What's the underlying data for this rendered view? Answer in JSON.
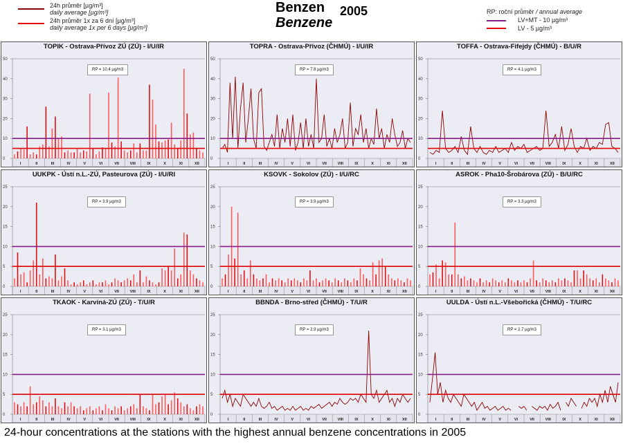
{
  "legend": {
    "daily_cz": "24h průměr [µg/m³]",
    "daily_en": "daily average [µg/m³]",
    "six_cz": "24h průměr 1x za 6 dní [µg/m³]",
    "six_en": "daily average 1x per 6 days [µg/m³]",
    "rp_label": "RP: roční průměr",
    "rp_en": "/ annual average",
    "lvmt": "LV+MT - 10 µg/m³",
    "lv": "LV - 5 µg/m³"
  },
  "header": {
    "title_cz": "Benzen",
    "title_en": "Benzene",
    "year": "2005"
  },
  "caption": "24-hour concentrations at the stations with the highest annual benzene concentrations in 2005",
  "colors": {
    "lvmt": "#8a1a8a",
    "lv": "#e00000",
    "bar": "#ff5a5a",
    "line": "#8b0000",
    "panel_bg": "#ececf4"
  },
  "months": [
    "I",
    "II",
    "III",
    "IV",
    "V",
    "VI",
    "VII",
    "VIII",
    "IX",
    "X",
    "XI",
    "XII"
  ],
  "chart_data": [
    {
      "type": "bar",
      "title": "TOPIK - Ostrava-Přívoz ZÚ (ZÚ) - I/U/IR",
      "rp": "RP = 10.4 µg/m3",
      "ylim": [
        0,
        50
      ],
      "yticks": [
        0,
        10,
        20,
        30,
        40,
        50
      ],
      "limits": [
        10,
        5
      ],
      "values": [
        2,
        3.5,
        5,
        4.5,
        16,
        2,
        3,
        2,
        6,
        7,
        26,
        6,
        15,
        21,
        10,
        11,
        3,
        4,
        3,
        3,
        5,
        3,
        4,
        3.5,
        32.5,
        5,
        2,
        3.5,
        5.5,
        5,
        33,
        8,
        6,
        40.5,
        8.5,
        4,
        3,
        4,
        7.5,
        3,
        7.5,
        4,
        4,
        37,
        29.5,
        17,
        8.5,
        8,
        9,
        9.5,
        18,
        7,
        5,
        9,
        45,
        22.5,
        12,
        13,
        5,
        4,
        3
      ]
    },
    {
      "type": "line",
      "title": "TOPRA - Ostrava-Přívoz (ČHMÚ) - I/U/IR",
      "rp": "RP = 7.8 µg/m3",
      "ylim": [
        0,
        50
      ],
      "yticks": [
        0,
        10,
        20,
        30,
        40,
        50
      ],
      "limits": [
        10,
        5
      ],
      "values": [
        5,
        7,
        3,
        38,
        10,
        41,
        5,
        25,
        38,
        8,
        20,
        35,
        10,
        5,
        33,
        35,
        6,
        4,
        8,
        12,
        6,
        22,
        5,
        15,
        8,
        20,
        6,
        22,
        4,
        8,
        18,
        5,
        20,
        6,
        12,
        5,
        40,
        8,
        10,
        22,
        6,
        10,
        5,
        15,
        8,
        12,
        20,
        5,
        8,
        28,
        6,
        15,
        12,
        22,
        8,
        15,
        5,
        10,
        7,
        25,
        10,
        15,
        5,
        12,
        8,
        20,
        12,
        6,
        8,
        14,
        5,
        10,
        8
      ]
    },
    {
      "type": "line",
      "title": "TOFFA - Ostrava-Fifejdy (ČHMÚ) - B/U/R",
      "rp": "RP = 4.1 µg/m3",
      "ylim": [
        0,
        50
      ],
      "yticks": [
        0,
        10,
        20,
        30,
        40,
        50
      ],
      "limits": [
        10,
        5
      ],
      "values": [
        3,
        2,
        4,
        3,
        24,
        5,
        3,
        4,
        6,
        3,
        11,
        4,
        2,
        16,
        5,
        3,
        6,
        3,
        2,
        4,
        3,
        6,
        3,
        4,
        5,
        3,
        8,
        4,
        6,
        5,
        7,
        3,
        4,
        5,
        6,
        4,
        5,
        24,
        6,
        8,
        12,
        5,
        16,
        4,
        7,
        15,
        6,
        3,
        6,
        5,
        10,
        4,
        6,
        5,
        8,
        7,
        17,
        18,
        6,
        5,
        3
      ]
    },
    {
      "type": "bar",
      "title": "UUKPK - Ústí n.L.-ZÚ, Pasteurova (ZÚ) - I/U/RI",
      "rp": "RP = 3.9 µg/m3",
      "ylim": [
        0,
        25
      ],
      "yticks": [
        0,
        5,
        10,
        15,
        20,
        25
      ],
      "limits": [
        10,
        5
      ],
      "values": [
        2,
        8.5,
        3,
        3.5,
        1,
        4,
        6.5,
        21,
        3,
        7,
        2,
        2.5,
        2,
        8,
        1.5,
        2.5,
        4.5,
        1.5,
        0.5,
        1,
        0.5,
        1,
        1.5,
        0.5,
        1,
        1.5,
        0.5,
        1,
        1,
        1.5,
        0.5,
        1,
        2,
        1.5,
        1,
        1.5,
        2,
        1.5,
        3,
        1,
        4,
        1,
        2.5,
        1.5,
        1,
        0.5,
        1,
        4.5,
        4,
        5,
        4,
        9.5,
        2,
        3,
        13.5,
        13,
        4,
        3,
        2,
        1.5,
        1
      ]
    },
    {
      "type": "bar",
      "title": "KSOVK - Sokolov (ZÚ) - I/U/RC",
      "rp": "RP = 3.9 µg/m3",
      "ylim": [
        0,
        25
      ],
      "yticks": [
        0,
        5,
        10,
        15,
        20,
        25
      ],
      "limits": [
        10,
        5
      ],
      "values": [
        2,
        3,
        8,
        20,
        7,
        18.5,
        3,
        4,
        2,
        6.5,
        3,
        2,
        1.5,
        2,
        3,
        1,
        2,
        1.5,
        2,
        1.5,
        1,
        2,
        1.5,
        2,
        1.5,
        1,
        2,
        1.5,
        4,
        1.5,
        2,
        1,
        1.5,
        2,
        1.5,
        1,
        2,
        1.5,
        1,
        2,
        1.5,
        1,
        2,
        1.5,
        4.5,
        3,
        2,
        1.5,
        6,
        3,
        6.5,
        7,
        5,
        3,
        2,
        1.5,
        2,
        1.5,
        1,
        2,
        1.5
      ]
    },
    {
      "type": "bar",
      "title": "ASROK - Pha10-Šrobárova (ZÚ) - B/U/RC",
      "rp": "RP = 3.3 µg/m3",
      "ylim": [
        0,
        25
      ],
      "yticks": [
        0,
        5,
        10,
        15,
        20,
        25
      ],
      "limits": [
        10,
        5
      ],
      "values": [
        3,
        3.5,
        5.5,
        2,
        6.5,
        6,
        3,
        3,
        16,
        3,
        2,
        2.5,
        1.5,
        2,
        1.5,
        1,
        2,
        1,
        1.5,
        1,
        2,
        1.5,
        1,
        1.5,
        1,
        2,
        1.5,
        1,
        1.5,
        1,
        1.5,
        1,
        2,
        6.5,
        1.5,
        1,
        2,
        1.5,
        1,
        1.5,
        1,
        2,
        1.5,
        2,
        1.5,
        1,
        4,
        4,
        2,
        4,
        3,
        2,
        1.5,
        2,
        1,
        3,
        2,
        1.5,
        1,
        2,
        1.5
      ]
    },
    {
      "type": "bar",
      "title": "TKAOK - Karviná-ZÚ (ZÚ) - T/U/R",
      "rp": "RP = 3.1 µg/m3",
      "ylim": [
        0,
        25
      ],
      "yticks": [
        0,
        5,
        10,
        15,
        20,
        25
      ],
      "limits": [
        10,
        5
      ],
      "values": [
        3,
        2.5,
        2,
        3,
        2,
        7,
        2.5,
        3,
        4.5,
        3.5,
        2,
        3,
        2,
        4,
        2,
        1.5,
        3,
        2,
        3,
        2,
        1.5,
        2,
        1,
        1.5,
        2,
        1,
        1.5,
        2,
        1,
        2.5,
        1.5,
        1,
        2,
        1.5,
        2,
        1,
        1.5,
        2,
        2.5,
        1.5,
        5,
        2,
        1.5,
        1,
        5,
        2.5,
        3,
        4.5,
        5,
        2.5,
        3.5,
        5.5,
        4,
        3,
        2,
        2.5,
        1.5,
        1,
        2,
        2.5,
        2
      ]
    },
    {
      "type": "line",
      "title": "BBNDA - Brno-střed (ČHMÚ) - T/U/R",
      "rp": "RP = 2.9 µg/m3",
      "ylim": [
        0,
        25
      ],
      "yticks": [
        0,
        5,
        10,
        15,
        20,
        25
      ],
      "limits": [
        10,
        5
      ],
      "values": [
        4,
        6,
        3,
        5,
        2,
        4,
        3,
        2,
        5,
        4,
        3,
        2,
        3,
        2,
        4,
        2,
        1.5,
        2,
        3,
        1.5,
        2,
        1,
        1.5,
        2,
        1,
        1.5,
        1,
        2,
        1,
        1.5,
        2,
        1,
        1.5,
        1,
        2,
        1.5,
        2,
        2.5,
        1.5,
        2,
        2.5,
        3,
        2,
        3,
        2.5,
        4,
        3,
        2.5,
        3,
        4,
        3.5,
        4,
        3,
        5,
        4,
        3,
        21,
        5,
        4,
        6,
        3,
        4,
        5,
        6,
        3,
        4,
        2,
        4,
        3,
        5,
        4,
        3,
        4
      ]
    },
    {
      "type": "line",
      "title": "UULDA - Ústí n.L.-Všebořická (ČHMÚ) - T/U/RC",
      "rp": "RP = 2.7 µg/m3",
      "ylim": [
        0,
        25
      ],
      "yticks": [
        0,
        5,
        10,
        15,
        20,
        25
      ],
      "limits": [
        10,
        5
      ],
      "values": [
        3,
        9,
        15.5,
        5,
        8,
        3,
        6,
        4,
        3,
        5,
        4,
        3,
        2,
        5,
        4,
        3,
        2,
        3,
        1,
        2,
        3,
        1.5,
        2,
        1,
        1.5,
        2,
        1,
        1.5,
        2,
        1,
        1.5,
        1,
        null,
        null,
        2,
        1.5,
        2,
        1,
        null,
        2,
        1.5,
        1,
        2,
        1.5,
        2,
        1,
        2.5,
        1.5,
        2,
        3,
        1,
        null,
        3,
        2,
        4,
        3,
        2,
        null,
        1.5,
        3,
        2,
        4,
        3,
        4,
        2,
        5,
        3,
        6,
        3,
        7,
        5,
        3,
        8
      ]
    }
  ]
}
